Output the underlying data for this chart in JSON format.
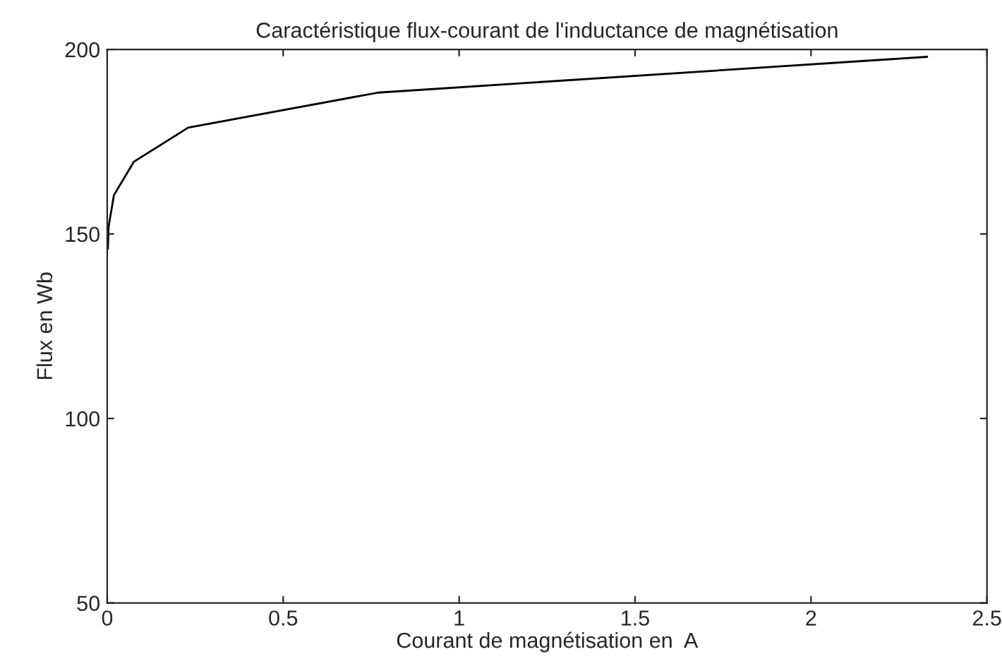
{
  "chart_data": {
    "type": "line",
    "title": "Caractéristique flux-courant de l'inductance de magnétisation",
    "xlabel": "Courant de magnétisation en  A",
    "ylabel": "Flux en Wb",
    "x": [
      0.002,
      0.004,
      0.019,
      0.076,
      0.23,
      0.77,
      2.33
    ],
    "series": [
      {
        "color": "#000000",
        "values": [
          146,
          152,
          160.5,
          169.6,
          178.8,
          188.3,
          198
        ]
      }
    ],
    "xlim": [
      0,
      2.5
    ],
    "xticks": [
      0,
      0.5,
      1,
      1.5,
      2,
      2.5
    ],
    "ylim": [
      50,
      200
    ],
    "yticks": [
      50,
      100,
      150,
      200
    ],
    "grid": false,
    "legend": false,
    "marker": "none",
    "line_style": "solid"
  }
}
